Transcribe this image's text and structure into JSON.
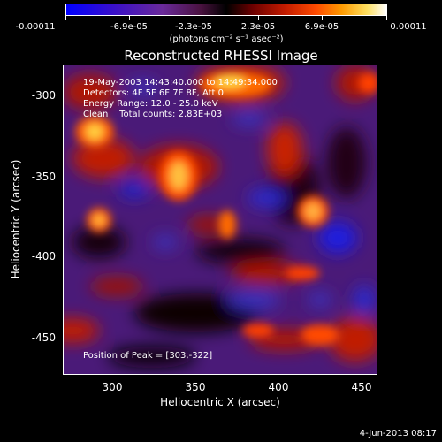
{
  "colorbar": {
    "tick_labels": [
      "-0.00011",
      "-6.9e-05",
      "-2.3e-05",
      "2.3e-05",
      "6.9e-05",
      "0.00011"
    ],
    "units": "(photons cm⁻² s⁻¹ asec⁻²)"
  },
  "title": "Reconstructed RHESSI Image",
  "info": {
    "line1": "19-May-2003 14:43:40.000 to 14:49:34.000",
    "line2": "Detectors: 4F 5F 6F 7F 8F, Att 0",
    "line3": "Energy Range: 12.0 - 25.0 keV",
    "line4": "Clean    Total counts: 2.83E+03",
    "peak": "Position of Peak = [303,-322]"
  },
  "axes": {
    "xlabel": "Heliocentric X (arcsec)",
    "ylabel": "Heliocentric Y (arcsec)",
    "xticks": [
      "300",
      "350",
      "400",
      "450"
    ],
    "yticks": [
      "-300",
      "-350",
      "-400",
      "-450"
    ]
  },
  "timestamp": "4-Jun-2013 08:17"
}
